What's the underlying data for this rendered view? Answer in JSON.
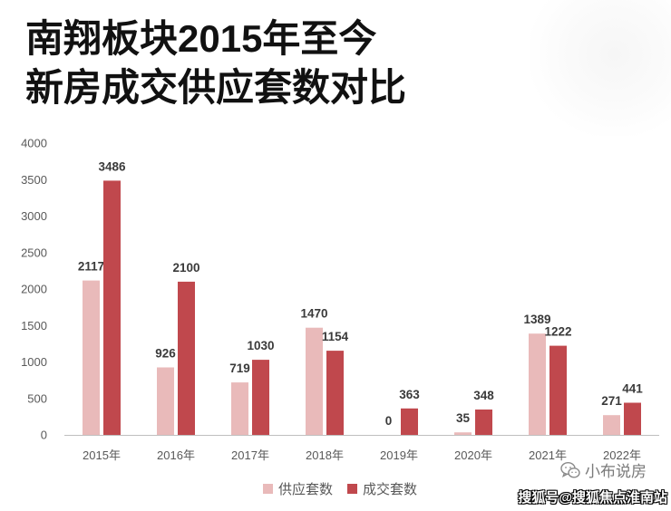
{
  "chart_data": {
    "type": "bar",
    "title": [
      "南翔板块2015年至今",
      "新房成交供应套数对比"
    ],
    "categories": [
      "2015年",
      "2016年",
      "2017年",
      "2018年",
      "2019年",
      "2020年",
      "2021年",
      "2022年"
    ],
    "series": [
      {
        "name": "供应套数",
        "color": "#e9baba",
        "values": [
          2117,
          926,
          719,
          1470,
          0,
          35,
          1389,
          271
        ]
      },
      {
        "name": "成交套数",
        "color": "#c0484d",
        "values": [
          3486,
          2100,
          1030,
          1154,
          363,
          348,
          1222,
          441
        ]
      }
    ],
    "ylim": [
      0,
      4000
    ],
    "yticks": [
      0,
      500,
      1000,
      1500,
      2000,
      2500,
      3000,
      3500,
      4000
    ],
    "data_labels": true,
    "grid": false,
    "legend": "bottom-center"
  },
  "watermark": {
    "icon": "wechat-icon",
    "account": "小布说房",
    "source": "搜狐号@搜狐焦点淮南站"
  }
}
